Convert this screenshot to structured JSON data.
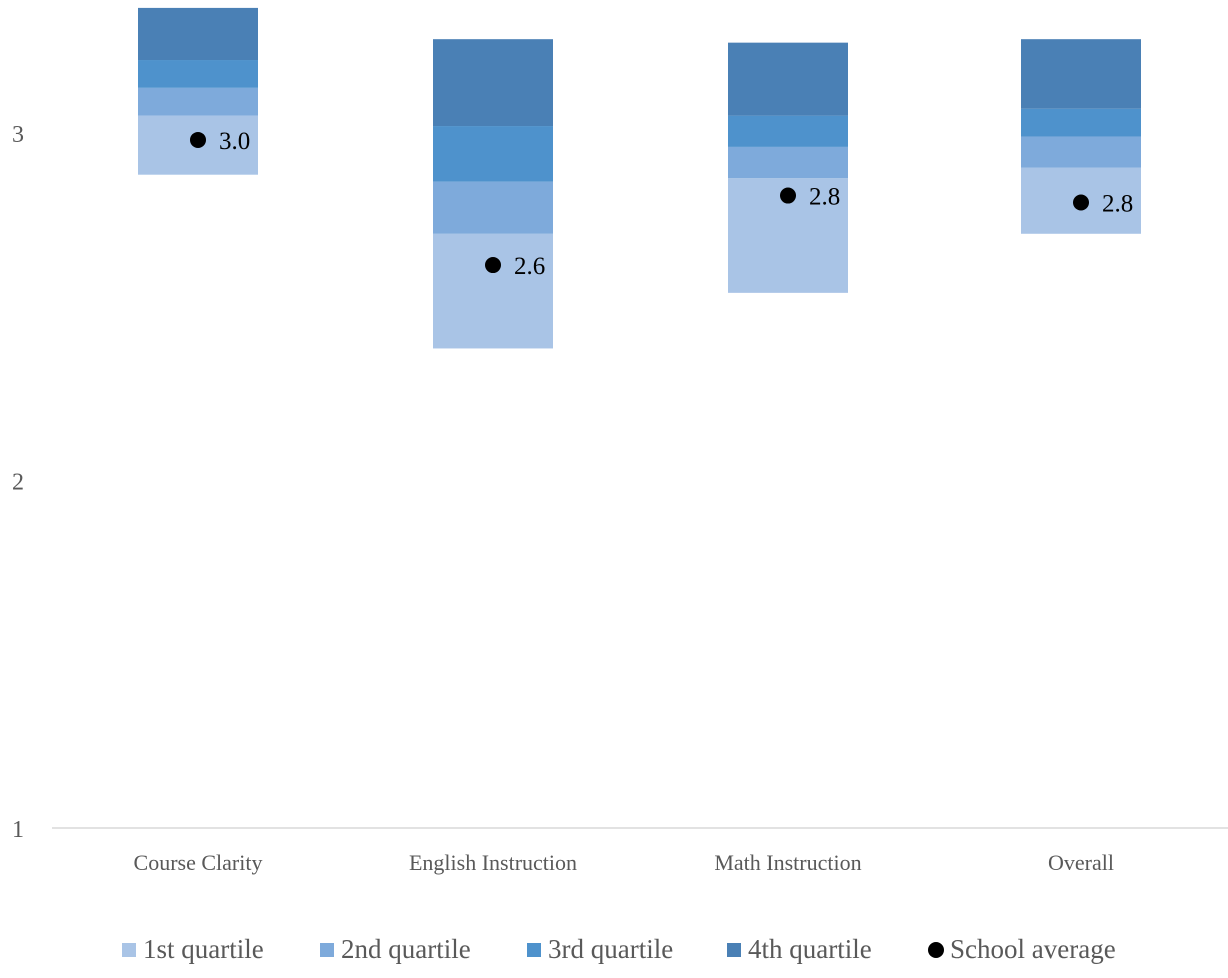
{
  "chart_data": {
    "type": "bar",
    "stacked": true,
    "floating": true,
    "title": "",
    "xlabel": "",
    "ylabel": "",
    "categories": [
      "Course Clarity",
      "English Instruction",
      "Math Instruction",
      "Overall"
    ],
    "ylim": [
      1,
      3.38
    ],
    "yticks": [
      1,
      2,
      3
    ],
    "grid": false,
    "legend_position": "bottom",
    "series": [
      {
        "name": "1st quartile",
        "color": "#a9c4e6",
        "bottoms": [
          2.88,
          2.38,
          2.54,
          2.71
        ],
        "tops": [
          3.05,
          2.71,
          2.87,
          2.9
        ]
      },
      {
        "name": "2nd quartile",
        "color": "#7eaadb",
        "bottoms": [
          3.05,
          2.71,
          2.87,
          2.9
        ],
        "tops": [
          3.13,
          2.86,
          2.96,
          2.99
        ]
      },
      {
        "name": "3rd quartile",
        "color": "#4e92cc",
        "bottoms": [
          3.13,
          2.86,
          2.96,
          2.99
        ],
        "tops": [
          3.21,
          3.02,
          3.05,
          3.07
        ]
      },
      {
        "name": "4th quartile",
        "color": "#4a80b5",
        "bottoms": [
          3.21,
          3.02,
          3.05,
          3.07
        ],
        "tops": [
          3.36,
          3.27,
          3.26,
          3.27
        ]
      }
    ],
    "school_average": {
      "name": "School average",
      "color": "#000000",
      "values": [
        2.98,
        2.62,
        2.82,
        2.8
      ],
      "labels": [
        "3.0",
        "2.6",
        "2.8",
        "2.8"
      ]
    }
  }
}
